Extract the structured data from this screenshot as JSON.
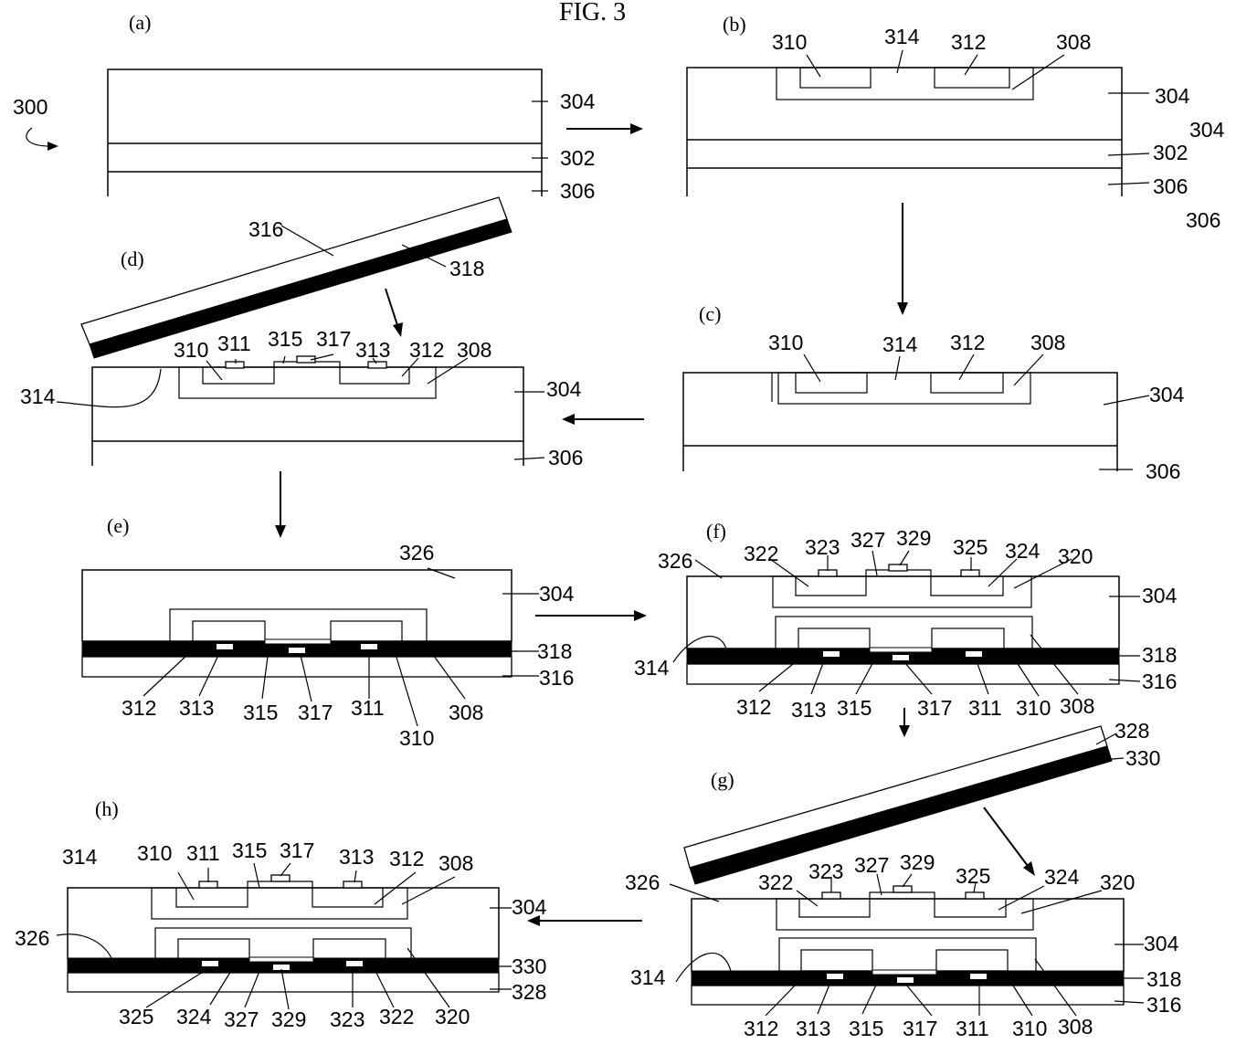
{
  "figure": {
    "title": "FIG. 3",
    "panels": {
      "a": "(a)",
      "b": "(b)",
      "c": "(c)",
      "d": "(d)",
      "e": "(e)",
      "f": "(f)",
      "g": "(g)",
      "h": "(h)"
    },
    "labels": {
      "a_300": "300",
      "a_304": "304",
      "a_302": "302",
      "a_306": "306",
      "b_310": "310",
      "b_314": "314",
      "b_312": "312",
      "b_308": "308",
      "b_304": "304",
      "b_304x": "304",
      "b_302": "302",
      "b_306": "306",
      "b_306x": "306",
      "c_310": "310",
      "c_314": "314",
      "c_312": "312",
      "c_308": "308",
      "c_304": "304",
      "c_306": "306",
      "d_316": "316",
      "d_318": "318",
      "d_310": "310",
      "d_311": "311",
      "d_315": "315",
      "d_317": "317",
      "d_313": "313",
      "d_312": "312",
      "d_308": "308",
      "d_314": "314",
      "d_304": "304",
      "d_306": "306",
      "e_326": "326",
      "e_304": "304",
      "e_318": "318",
      "e_316": "316",
      "e_312": "312",
      "e_313": "313",
      "e_315": "315",
      "e_317": "317",
      "e_311": "311",
      "e_310": "310",
      "e_308": "308",
      "f_326": "326",
      "f_322": "322",
      "f_323": "323",
      "f_327": "327",
      "f_329": "329",
      "f_325": "325",
      "f_324": "324",
      "f_320": "320",
      "f_304": "304",
      "f_314": "314",
      "f_318": "318",
      "f_316": "316",
      "f_312": "312",
      "f_313": "313",
      "f_315": "315",
      "f_317": "317",
      "f_311": "311",
      "f_310": "310",
      "f_308": "308",
      "g_328": "328",
      "g_330": "330",
      "g_326": "326",
      "g_322": "322",
      "g_323": "323",
      "g_327": "327",
      "g_329": "329",
      "g_325": "325",
      "g_324": "324",
      "g_320": "320",
      "g_304": "304",
      "g_314": "314",
      "g_318": "318",
      "g_316": "316",
      "g_312": "312",
      "g_313": "313",
      "g_315": "315",
      "g_317": "317",
      "g_311": "311",
      "g_310": "310",
      "g_308": "308",
      "h_314": "314",
      "h_310": "310",
      "h_311": "311",
      "h_315": "315",
      "h_317": "317",
      "h_313": "313",
      "h_312": "312",
      "h_308": "308",
      "h_304": "304",
      "h_326": "326",
      "h_330": "330",
      "h_328": "328",
      "h_325": "325",
      "h_324": "324",
      "h_327": "327",
      "h_329": "329",
      "h_323": "323",
      "h_322": "322",
      "h_320": "320"
    }
  }
}
